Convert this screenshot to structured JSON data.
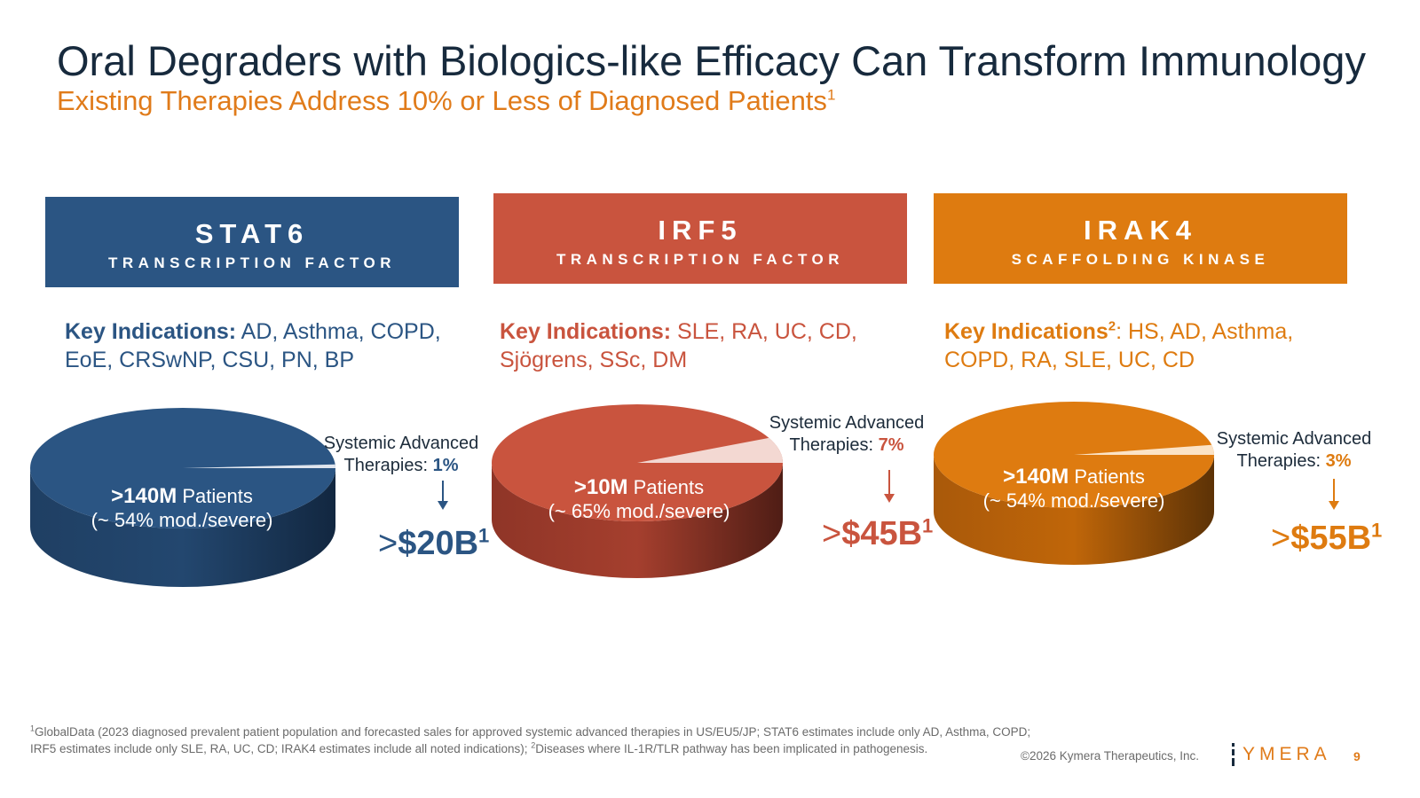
{
  "slide": {
    "title": "Oral Degraders with Biologics-like Efficacy Can Transform Immunology",
    "subtitle_main": "Existing Therapies Address 10% or Less of Diagnosed Patients",
    "subtitle_sup": "1"
  },
  "colors": {
    "title": "#172a3d",
    "accent_orange": "#e07b1a",
    "stat6": "#2b5583",
    "irf5": "#c9543e",
    "irak4": "#de7b10"
  },
  "cards": [
    {
      "name": "STAT6",
      "sub": "TRANSCRIPTION FACTOR",
      "ind_label": "Key Indications:",
      "ind_sup": "",
      "ind_text": " AD, Asthma, COPD, EoE, CRSwNP, CSU, PN, BP",
      "patients_bold": ">140M",
      "patients_text": " Patients",
      "severity": "(~ 54% mod./severe)",
      "sat_line1": "Systemic Advanced",
      "sat_line2": "Therapies: ",
      "sat_pct": "1%",
      "market_gt": ">",
      "market_val": "$20B",
      "market_sup": "1"
    },
    {
      "name": "IRF5",
      "sub": "TRANSCRIPTION FACTOR",
      "ind_label": "Key Indications:",
      "ind_sup": "",
      "ind_text": "  SLE, RA, UC, CD, Sjögrens, SSc, DM",
      "patients_bold": ">10M",
      "patients_text": " Patients",
      "severity": "(~ 65% mod./severe)",
      "sat_line1": "Systemic Advanced",
      "sat_line2": "Therapies: ",
      "sat_pct": "7%",
      "market_gt": ">",
      "market_val": "$45B",
      "market_sup": "1"
    },
    {
      "name": "IRAK4",
      "sub": "SCAFFOLDING KINASE",
      "ind_label": "Key Indications",
      "ind_sup": "2",
      "ind_text": ":  HS, AD, Asthma, COPD, RA, SLE, UC, CD",
      "patients_bold": ">140M",
      "patients_text": " Patients",
      "severity": "(~ 54% mod./severe)",
      "sat_line1": "Systemic Advanced",
      "sat_line2": "Therapies: ",
      "sat_pct": "3%",
      "market_gt": ">",
      "market_val": "$55B",
      "market_sup": "1"
    }
  ],
  "chart_data": [
    {
      "type": "pie",
      "title": "STAT6",
      "series": [
        {
          "values": [
            99,
            1
          ]
        }
      ],
      "categories": [
        "Patients",
        "Systemic Advanced Therapies"
      ]
    },
    {
      "type": "pie",
      "title": "IRF5",
      "series": [
        {
          "values": [
            93,
            7
          ]
        }
      ],
      "categories": [
        "Patients",
        "Systemic Advanced Therapies"
      ]
    },
    {
      "type": "pie",
      "title": "IRAK4",
      "series": [
        {
          "values": [
            97,
            3
          ]
        }
      ],
      "categories": [
        "Patients",
        "Systemic Advanced Therapies"
      ]
    }
  ],
  "footer": {
    "fn1_sup": "1",
    "fn1_text": "GlobalData (2023 diagnosed prevalent patient population and forecasted sales for approved systemic advanced therapies in US/EU5/JP; STAT6 estimates include only AD, Asthma, COPD; IRF5 estimates include only SLE, RA, UC, CD; IRAK4 estimates include all noted indications); ",
    "fn2_sup": "2",
    "fn2_text": "Diseases where IL-1R/TLR pathway has been implicated in pathogenesis.",
    "copyright": "©2026 Kymera Therapeutics, Inc.",
    "logo_text": "YMERA",
    "page_number": "9"
  }
}
